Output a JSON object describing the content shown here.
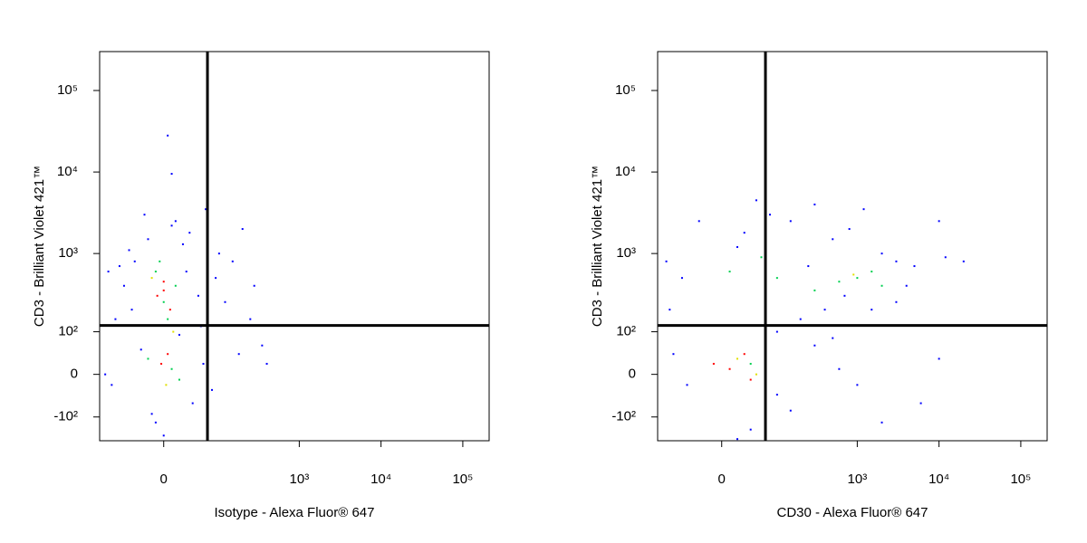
{
  "chart_data": [
    {
      "type": "scatter",
      "xlabel": "Isotype - Alexa Fluor® 647",
      "ylabel": "CD3 - Brilliant Violet 421™",
      "xscale": "arcsinh",
      "yscale": "arcsinh",
      "xlim": [
        -130,
        210000
      ],
      "ylim": [
        -210,
        300000
      ],
      "xticks": [
        0,
        {
          "value": 1000,
          "label": "10³"
        },
        {
          "value": 10000,
          "label": "10⁴"
        },
        {
          "value": 100000,
          "label": "10⁵"
        }
      ],
      "yticks": [
        {
          "value": -100,
          "label": "-10²"
        },
        0,
        {
          "value": 100,
          "label": "10²"
        },
        {
          "value": 1000,
          "label": "10³"
        },
        {
          "value": 10000,
          "label": "10⁴"
        },
        {
          "value": 100000,
          "label": "10⁵"
        }
      ],
      "gates": {
        "x": 69,
        "y": 123
      },
      "series": [
        {
          "color": "#0000ff",
          "x": [
            -20,
            10,
            -40,
            30,
            -60,
            50,
            -80,
            20,
            -30,
            60,
            -90,
            40,
            -10,
            0,
            -50,
            70,
            -70,
            15,
            -25,
            35,
            90,
            120,
            150,
            200,
            280,
            350,
            180,
            -110,
            80,
            -15,
            25,
            -45,
            55,
            5,
            10,
            100,
            250,
            400,
            -100,
            65
          ],
          "y": [
            1500,
            2200,
            800,
            600,
            400,
            300,
            150,
            90,
            50,
            20,
            -20,
            -60,
            -120,
            -180,
            1100,
            900,
            700,
            2500,
            3000,
            1800,
            500,
            250,
            800,
            2000,
            400,
            60,
            40,
            0,
            -30,
            -90,
            1300,
            200,
            120,
            28000,
            9500,
            1000,
            150,
            20,
            600,
            3500
          ]
        },
        {
          "color": "#00d050",
          "x": [
            -10,
            15,
            0,
            -20,
            10,
            20,
            -5,
            5
          ],
          "y": [
            600,
            400,
            250,
            30,
            10,
            -10,
            800,
            150
          ]
        },
        {
          "color": "#e0e000",
          "x": [
            -15,
            12,
            3
          ],
          "y": [
            500,
            100,
            -20
          ]
        },
        {
          "color": "#ff0000",
          "x": [
            0,
            -8,
            8,
            0,
            -3,
            5
          ],
          "y": [
            350,
            300,
            200,
            450,
            20,
            40
          ]
        }
      ]
    },
    {
      "type": "scatter",
      "xlabel": "CD30 - Alexa Fluor® 647",
      "ylabel": "CD3 - Brilliant Violet 421™",
      "xscale": "arcsinh",
      "yscale": "arcsinh",
      "xlim": [
        -130,
        210000
      ],
      "ylim": [
        -210,
        300000
      ],
      "xticks": [
        0,
        {
          "value": 1000,
          "label": "10³"
        },
        {
          "value": 10000,
          "label": "10⁴"
        },
        {
          "value": 100000,
          "label": "10⁵"
        }
      ],
      "yticks": [
        {
          "value": -100,
          "label": "-10²"
        },
        0,
        {
          "value": 100,
          "label": "10²"
        },
        {
          "value": 1000,
          "label": "10³"
        },
        {
          "value": 10000,
          "label": "10⁴"
        },
        {
          "value": 100000,
          "label": "10⁵"
        }
      ],
      "gates": {
        "x": 69,
        "y": 123
      },
      "series": [
        {
          "color": "#0000ff",
          "x": [
            -100,
            -60,
            20,
            80,
            150,
            300,
            500,
            800,
            1200,
            2000,
            3000,
            5000,
            10000,
            12000,
            700,
            400,
            200,
            100,
            1500,
            3000,
            -50,
            -80,
            100,
            150,
            40,
            20,
            300,
            600,
            2000,
            10000,
            6000,
            -90,
            50,
            250,
            4000,
            20000,
            30,
            -30,
            1000,
            500
          ],
          "y": [
            800,
            500,
            1200,
            3000,
            2500,
            4000,
            1500,
            2000,
            3500,
            1000,
            800,
            700,
            2500,
            900,
            300,
            200,
            150,
            100,
            200,
            250,
            -20,
            40,
            -40,
            -80,
            -150,
            -200,
            60,
            10,
            -120,
            30,
            -60,
            200,
            4500,
            700,
            400,
            800,
            1800,
            2500,
            -20,
            80
          ]
        },
        {
          "color": "#00d050",
          "x": [
            10,
            60,
            100,
            600,
            1000,
            1500,
            300,
            2000,
            40,
            70
          ],
          "y": [
            600,
            900,
            500,
            450,
            500,
            600,
            350,
            400,
            20,
            60
          ]
        },
        {
          "color": "#e0e000",
          "x": [
            20,
            50,
            900
          ],
          "y": [
            30,
            0,
            550
          ]
        },
        {
          "color": "#ff0000",
          "x": [
            10,
            30,
            -10,
            40
          ],
          "y": [
            10,
            40,
            20,
            -10
          ]
        }
      ]
    }
  ]
}
